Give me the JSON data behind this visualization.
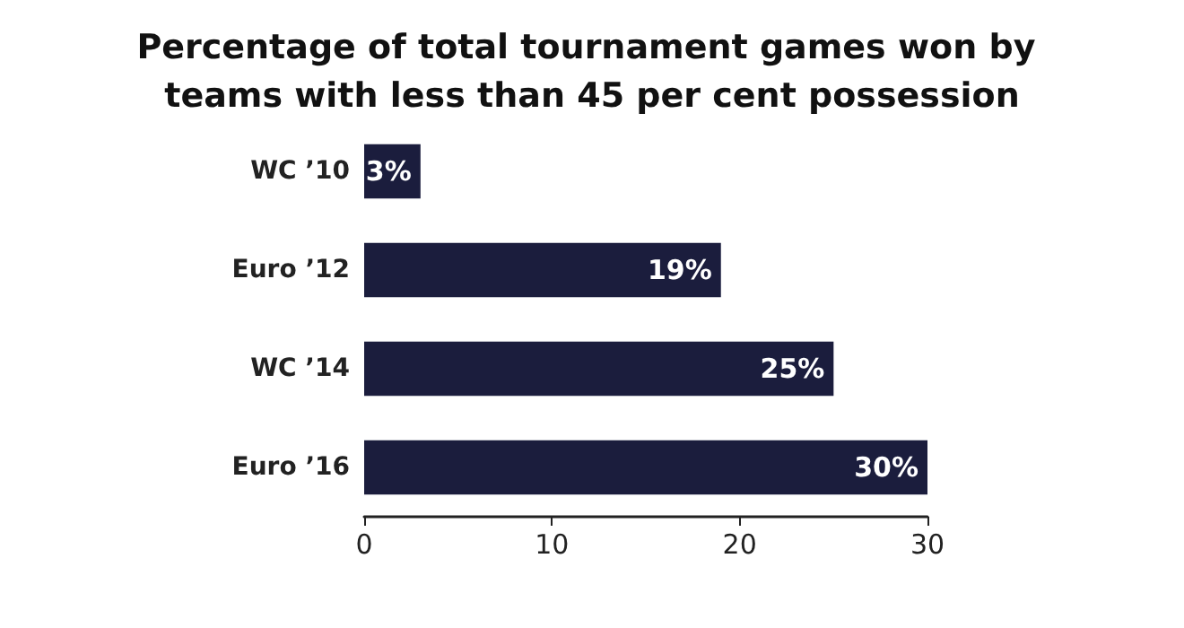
{
  "chart_data": {
    "type": "bar",
    "orientation": "horizontal",
    "title": "Percentage of total tournament games won by teams with less than 45 per cent possession",
    "categories": [
      "WC ’10",
      "Euro ’12",
      "WC ’14",
      "Euro ’16"
    ],
    "values": [
      3,
      19,
      25,
      30
    ],
    "value_labels": [
      "3%",
      "19%",
      "25%",
      "30%"
    ],
    "color": "#1b1d3d",
    "xlim": [
      0,
      30
    ],
    "xticks": [
      0,
      10,
      20,
      30
    ],
    "grid": false
  }
}
